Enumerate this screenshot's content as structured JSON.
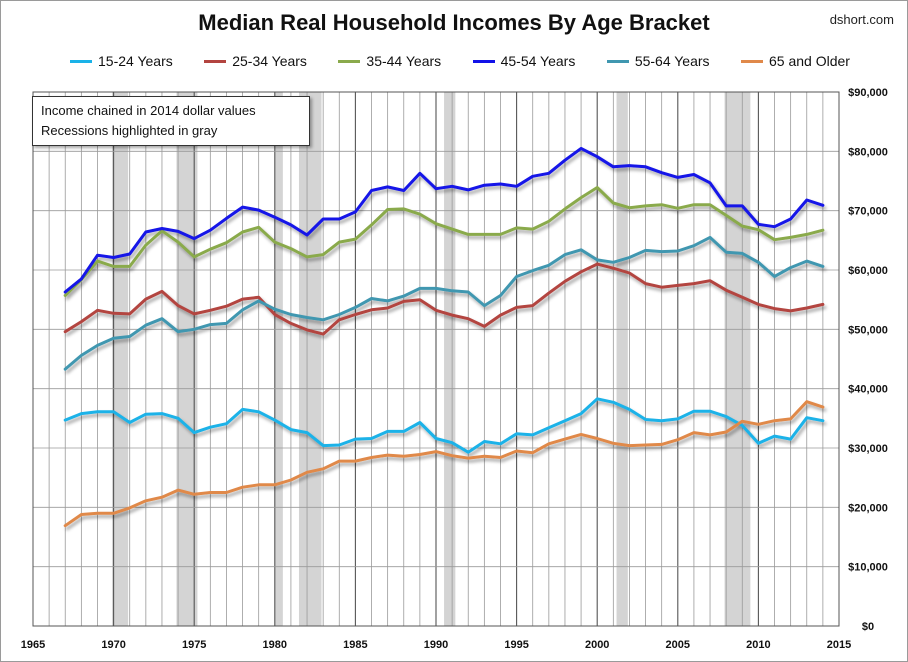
{
  "title": "Median Real Household Incomes By Age Bracket",
  "source_label": "dshort.com",
  "note_lines": [
    "Income chained in 2014 dollar values",
    "Recessions highlighted in gray"
  ],
  "chart_data": {
    "type": "line",
    "title": "Median Real Household Incomes By Age Bracket",
    "xlim": [
      1965,
      2015
    ],
    "ylim": [
      0,
      90000
    ],
    "x_ticks": [
      1965,
      1970,
      1975,
      1980,
      1985,
      1990,
      1995,
      2000,
      2005,
      2010,
      2015
    ],
    "x_tick_labels": [
      "1965",
      "1970",
      "1975",
      "1980",
      "1985",
      "1990",
      "1995",
      "2000",
      "2005",
      "2010",
      "2015"
    ],
    "y_ticks": [
      0,
      10000,
      20000,
      30000,
      40000,
      50000,
      60000,
      70000,
      80000,
      90000
    ],
    "y_tick_labels": [
      "$0",
      "$10,000",
      "$20,000",
      "$30,000",
      "$40,000",
      "$50,000",
      "$60,000",
      "$70,000",
      "$80,000",
      "$90,000"
    ],
    "y_axis_side": "right",
    "grid": "vertical yearly lines and horizontal lines",
    "legend_position": "top",
    "recessions": [
      [
        1969.9,
        1970.9
      ],
      [
        1973.9,
        1975.2
      ],
      [
        1980.0,
        1980.5
      ],
      [
        1981.5,
        1982.9
      ],
      [
        1990.5,
        1991.2
      ],
      [
        2001.2,
        2001.9
      ],
      [
        2007.9,
        2009.5
      ]
    ],
    "x": [
      1967,
      1968,
      1969,
      1970,
      1971,
      1972,
      1973,
      1974,
      1975,
      1976,
      1977,
      1978,
      1979,
      1980,
      1981,
      1982,
      1983,
      1984,
      1985,
      1986,
      1987,
      1988,
      1989,
      1990,
      1991,
      1992,
      1993,
      1994,
      1995,
      1996,
      1997,
      1998,
      1999,
      2000,
      2001,
      2002,
      2003,
      2004,
      2005,
      2006,
      2007,
      2008,
      2009,
      2010,
      2011,
      2012,
      2013,
      2014
    ],
    "series": [
      {
        "name": "15-24 Years",
        "color": "#1ab2e8",
        "values": [
          34700,
          35800,
          36100,
          36100,
          34300,
          35700,
          35800,
          35000,
          32600,
          33500,
          34100,
          36500,
          36100,
          34700,
          33100,
          32600,
          30400,
          30500,
          31500,
          31600,
          32800,
          32800,
          34300,
          31600,
          30900,
          29300,
          31100,
          30700,
          32400,
          32200,
          33400,
          34600,
          35800,
          38300,
          37700,
          36500,
          34800,
          34600,
          34900,
          36200,
          36200,
          35300,
          33800,
          30800,
          32000,
          31500,
          35100,
          34600
        ]
      },
      {
        "name": "25-34 Years",
        "color": "#b34440",
        "values": [
          49600,
          51300,
          53200,
          52700,
          52600,
          55100,
          56400,
          54000,
          52600,
          53200,
          53900,
          55100,
          55400,
          52500,
          51000,
          49900,
          49200,
          51600,
          52500,
          53300,
          53600,
          54700,
          55000,
          53200,
          52400,
          51800,
          50500,
          52400,
          53700,
          54000,
          56100,
          58100,
          59700,
          61000,
          60300,
          59500,
          57700,
          57100,
          57400,
          57700,
          58200,
          56600,
          55400,
          54200,
          53500,
          53100,
          53600,
          54200
        ]
      },
      {
        "name": "35-44 Years",
        "color": "#8aaa4c",
        "values": [
          55700,
          58400,
          61500,
          60600,
          60600,
          64200,
          66600,
          64700,
          62200,
          63500,
          64600,
          66400,
          67200,
          64700,
          63600,
          62200,
          62600,
          64700,
          65200,
          67600,
          70200,
          70300,
          69400,
          67800,
          66900,
          66000,
          66000,
          66000,
          67100,
          66900,
          68200,
          70300,
          72200,
          73900,
          71300,
          70500,
          70800,
          71000,
          70400,
          71000,
          71000,
          69200,
          67400,
          66800,
          65100,
          65500,
          66000,
          66700
        ]
      },
      {
        "name": "45-54 Years",
        "color": "#1212e8",
        "values": [
          56300,
          58500,
          62500,
          62100,
          62700,
          66400,
          67000,
          66500,
          65300,
          66700,
          68700,
          70600,
          70100,
          68900,
          67600,
          65900,
          68600,
          68600,
          69800,
          73400,
          74000,
          73400,
          76300,
          73700,
          74100,
          73500,
          74300,
          74500,
          74100,
          75800,
          76300,
          78500,
          80500,
          79100,
          77400,
          77600,
          77400,
          76400,
          75600,
          76100,
          74700,
          70800,
          70800,
          67700,
          67300,
          68600,
          71800,
          70900
        ]
      },
      {
        "name": "55-64 Years",
        "color": "#4097b0",
        "values": [
          43300,
          45600,
          47300,
          48500,
          48800,
          50700,
          51800,
          49600,
          50000,
          50800,
          51000,
          53300,
          54800,
          53400,
          52500,
          52000,
          51600,
          52500,
          53700,
          55200,
          54800,
          55600,
          56900,
          56900,
          56500,
          56300,
          54000,
          55700,
          58900,
          59900,
          60800,
          62600,
          63400,
          61700,
          61300,
          62100,
          63300,
          63100,
          63200,
          64100,
          65500,
          63000,
          62800,
          61300,
          58900,
          60400,
          61500,
          60600
        ]
      },
      {
        "name": "65 and Older",
        "color": "#e0894a",
        "values": [
          16900,
          18800,
          19000,
          19000,
          19900,
          21100,
          21700,
          22900,
          22200,
          22500,
          22500,
          23400,
          23800,
          23800,
          24600,
          25900,
          26500,
          27800,
          27800,
          28400,
          28800,
          28600,
          28900,
          29400,
          28700,
          28300,
          28600,
          28400,
          29500,
          29200,
          30700,
          31500,
          32300,
          31600,
          30800,
          30400,
          30500,
          30600,
          31400,
          32600,
          32200,
          32700,
          34500,
          34000,
          34600,
          34900,
          37800,
          36900
        ]
      }
    ]
  }
}
